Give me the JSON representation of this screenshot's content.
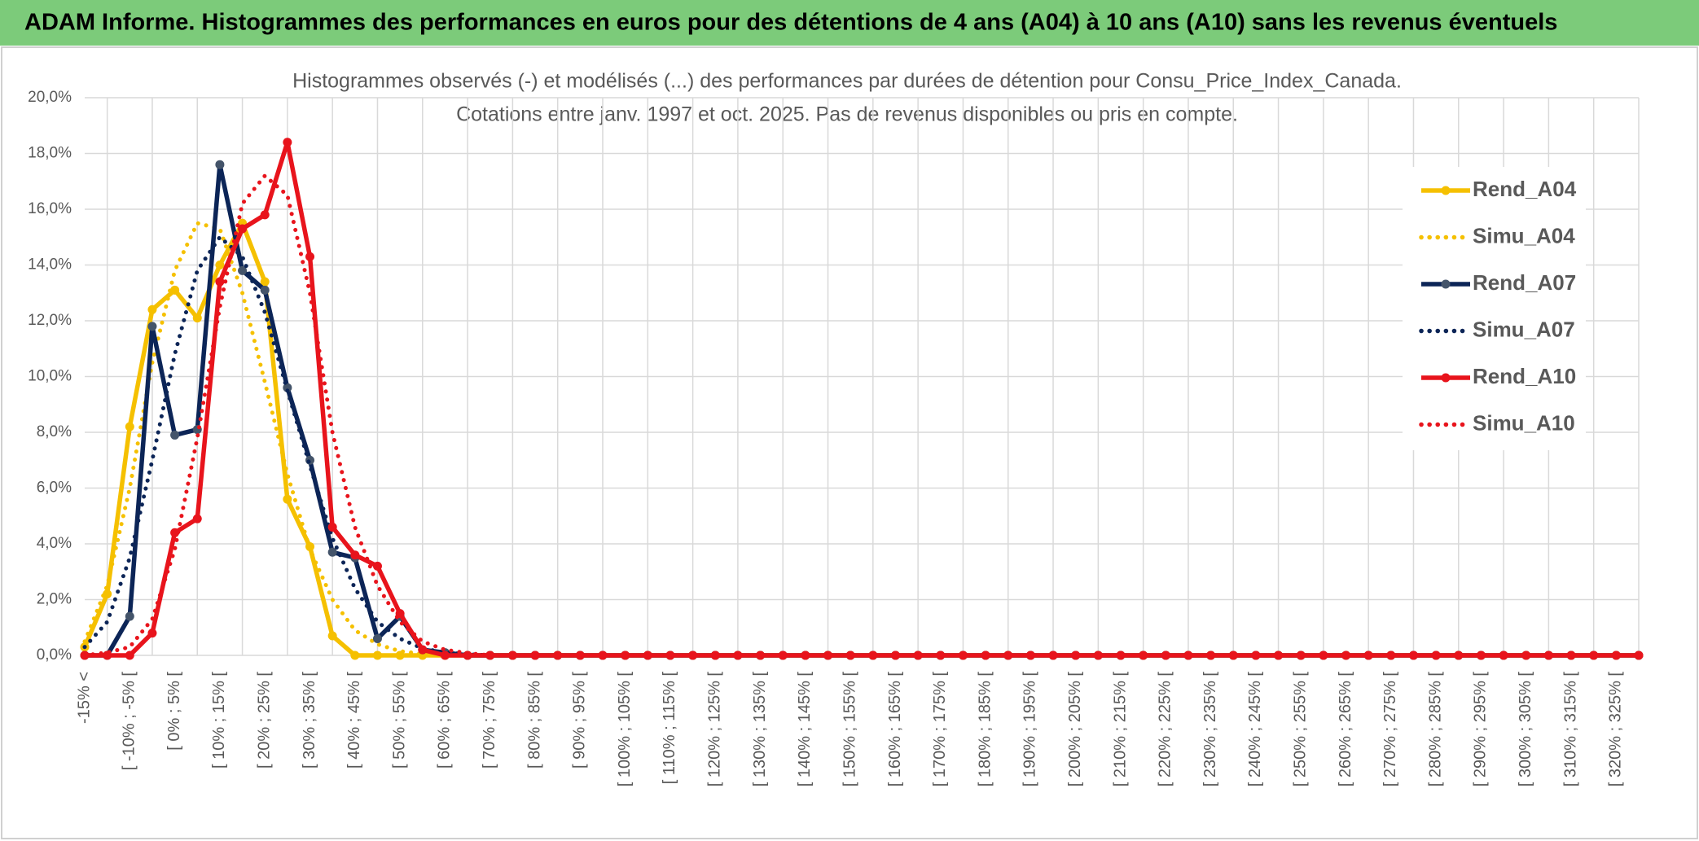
{
  "header": {
    "title": "ADAM Informe. Histogrammes des performances en euros pour des détentions de 4 ans (A04) à 10 ans (A10) sans les revenus éventuels"
  },
  "chart_data": {
    "type": "line",
    "title": "Histogrammes observés (-) et modélisés (...) des performances par durées de détention pour Consu_Price_Index_Canada.",
    "subtitle": "Cotations entre janv. 1997 et oct. 2025. Pas de revenus disponibles ou pris en compte.",
    "categories": [
      "-15% <",
      null,
      "[ -10% ; -5% [",
      null,
      "[ 0% ; 5% [",
      null,
      "[ 10% ; 15% [",
      null,
      "[ 20% ; 25% [",
      null,
      "[ 30% ; 35% [",
      null,
      "[ 40% ; 45% [",
      null,
      "[ 50% ; 55% [",
      null,
      "[ 60% ; 65% [",
      null,
      "[ 70% ; 75% [",
      null,
      "[ 80% ; 85% [",
      null,
      "[ 90% ; 95% [",
      null,
      "[ 100% ; 105% [",
      null,
      "[ 110% ; 115% [",
      null,
      "[ 120% ; 125% [",
      null,
      "[ 130% ; 135% [",
      null,
      "[ 140% ; 145% [",
      null,
      "[ 150% ; 155% [",
      null,
      "[ 160% ; 165% [",
      null,
      "[ 170% ; 175% [",
      null,
      "[ 180% ; 185% [",
      null,
      "[ 190% ; 195% [",
      null,
      "[ 200% ; 205% [",
      null,
      "[ 210% ; 215% [",
      null,
      "[ 220% ; 225% [",
      null,
      "[ 230% ; 235% [",
      null,
      "[ 240% ; 245% [",
      null,
      "[ 250% ; 255% [",
      null,
      "[ 260% ; 265% [",
      null,
      "[ 270% ; 275% [",
      null,
      "[ 280% ; 285% [",
      null,
      "[ 290% ; 295% [",
      null,
      "[ 300% ; 305% [",
      null,
      "[ 310% ; 315% [",
      null,
      "[ 320% ; 325% [",
      null
    ],
    "series": [
      {
        "name": "Rend_A04",
        "color": "#f5c000",
        "style": "solid",
        "markers": true,
        "values": [
          0.3,
          2.2,
          8.2,
          12.4,
          13.1,
          12.1,
          14.0,
          15.5,
          13.4,
          5.6,
          3.9,
          0.7,
          0,
          0,
          0,
          0,
          0,
          0,
          0,
          0,
          0,
          0,
          0,
          0,
          0,
          0,
          0,
          0,
          0,
          0,
          0,
          0,
          0,
          0,
          0,
          0,
          0,
          0,
          0,
          0,
          0,
          0,
          0,
          0,
          0,
          0,
          0,
          0,
          0,
          0,
          0,
          0,
          0,
          0,
          0,
          0,
          0,
          0,
          0,
          0,
          0,
          0,
          0,
          0,
          0,
          0,
          0,
          0,
          0,
          0
        ]
      },
      {
        "name": "Simu_A04",
        "color": "#f5c000",
        "style": "dotted",
        "markers": false,
        "values": [
          0.5,
          2.5,
          6.0,
          10.5,
          13.8,
          15.5,
          15.3,
          13.0,
          9.8,
          6.5,
          3.8,
          2.0,
          0.9,
          0.4,
          0.15,
          0.05,
          0,
          0,
          0,
          0,
          0,
          0,
          0,
          0,
          0,
          0,
          0,
          0,
          0,
          0,
          0,
          0,
          0,
          0,
          0,
          0,
          0,
          0,
          0,
          0,
          0,
          0,
          0,
          0,
          0,
          0,
          0,
          0,
          0,
          0,
          0,
          0,
          0,
          0,
          0,
          0,
          0,
          0,
          0,
          0,
          0,
          0,
          0,
          0,
          0,
          0,
          0,
          0,
          0,
          0
        ]
      },
      {
        "name": "Rend_A07",
        "color": "#0c2557",
        "style": "solid",
        "markers": true,
        "values": [
          0,
          0,
          1.4,
          11.8,
          7.9,
          8.1,
          17.6,
          13.8,
          13.1,
          9.6,
          7.0,
          3.7,
          3.5,
          0.6,
          1.4,
          0.2,
          0.1,
          0,
          0,
          0,
          0,
          0,
          0,
          0,
          0,
          0,
          0,
          0,
          0,
          0,
          0,
          0,
          0,
          0,
          0,
          0,
          0,
          0,
          0,
          0,
          0,
          0,
          0,
          0,
          0,
          0,
          0,
          0,
          0,
          0,
          0,
          0,
          0,
          0,
          0,
          0,
          0,
          0,
          0,
          0,
          0,
          0,
          0,
          0,
          0,
          0,
          0,
          0,
          0,
          0
        ]
      },
      {
        "name": "Simu_A07",
        "color": "#0c2557",
        "style": "dotted",
        "markers": false,
        "values": [
          0.3,
          1.2,
          3.5,
          7.0,
          10.8,
          13.8,
          15.0,
          14.3,
          12.3,
          9.5,
          6.8,
          4.2,
          2.4,
          1.2,
          0.6,
          0.25,
          0.1,
          0.04,
          0,
          0,
          0,
          0,
          0,
          0,
          0,
          0,
          0,
          0,
          0,
          0,
          0,
          0,
          0,
          0,
          0,
          0,
          0,
          0,
          0,
          0,
          0,
          0,
          0,
          0,
          0,
          0,
          0,
          0,
          0,
          0,
          0,
          0,
          0,
          0,
          0,
          0,
          0,
          0,
          0,
          0,
          0,
          0,
          0,
          0,
          0,
          0,
          0,
          0,
          0,
          0
        ]
      },
      {
        "name": "Rend_A10",
        "color": "#e8141c",
        "style": "solid",
        "markers": true,
        "values": [
          0,
          0,
          0,
          0.8,
          4.4,
          4.9,
          13.4,
          15.3,
          15.8,
          18.4,
          14.3,
          4.6,
          3.6,
          3.2,
          1.5,
          0.2,
          0,
          0,
          0,
          0,
          0,
          0,
          0,
          0,
          0,
          0,
          0,
          0,
          0,
          0,
          0,
          0,
          0,
          0,
          0,
          0,
          0,
          0,
          0,
          0,
          0,
          0,
          0,
          0,
          0,
          0,
          0,
          0,
          0,
          0,
          0,
          0,
          0,
          0,
          0,
          0,
          0,
          0,
          0,
          0,
          0,
          0,
          0,
          0,
          0,
          0,
          0,
          0,
          0,
          0
        ]
      },
      {
        "name": "Simu_A10",
        "color": "#e8141c",
        "style": "dotted",
        "markers": false,
        "values": [
          0,
          0.1,
          0.3,
          1.3,
          3.8,
          7.8,
          12.5,
          16.2,
          17.2,
          16.5,
          13.0,
          8.0,
          4.6,
          2.5,
          1.2,
          0.5,
          0.2,
          0.08,
          0,
          0,
          0,
          0,
          0,
          0,
          0,
          0,
          0,
          0,
          0,
          0,
          0,
          0,
          0,
          0,
          0,
          0,
          0,
          0,
          0,
          0,
          0,
          0,
          0,
          0,
          0,
          0,
          0,
          0,
          0,
          0,
          0,
          0,
          0,
          0,
          0,
          0,
          0,
          0,
          0,
          0,
          0,
          0,
          0,
          0,
          0,
          0,
          0,
          0,
          0,
          0
        ]
      }
    ],
    "ylim": [
      0,
      20
    ],
    "yticks": [
      {
        "value": 0,
        "label": "0,0%"
      },
      {
        "value": 2,
        "label": "2,0%"
      },
      {
        "value": 4,
        "label": "4,0%"
      },
      {
        "value": 6,
        "label": "6,0%"
      },
      {
        "value": 8,
        "label": "8,0%"
      },
      {
        "value": 10,
        "label": "10,0%"
      },
      {
        "value": 12,
        "label": "12,0%"
      },
      {
        "value": 14,
        "label": "14,0%"
      },
      {
        "value": 16,
        "label": "16,0%"
      },
      {
        "value": 18,
        "label": "18,0%"
      },
      {
        "value": 20,
        "label": "20,0%"
      }
    ],
    "grid": true,
    "legend": "right"
  }
}
